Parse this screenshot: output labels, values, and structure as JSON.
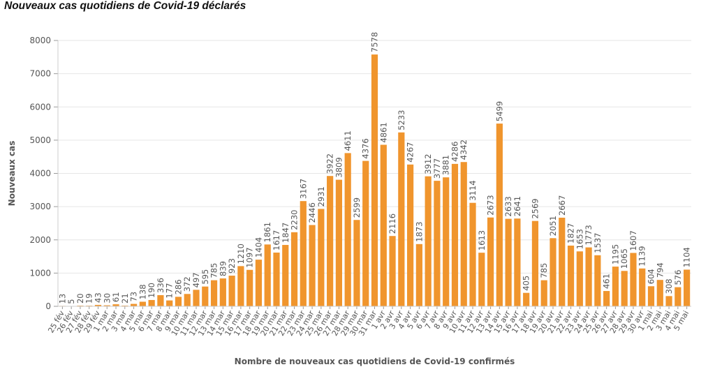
{
  "title": "Nouveaux cas quotidiens de Covid-19 déclarés",
  "chart_data": {
    "type": "bar",
    "xlabel": "Nombre de nouveaux cas quotidiens de Covid-19 confirmés",
    "ylabel": "Nouveaux cas",
    "ylim": [
      0,
      8000
    ],
    "yticks": [
      0,
      1000,
      2000,
      3000,
      4000,
      5000,
      6000,
      7000,
      8000
    ],
    "grid": true,
    "bar_color": "#f0952d",
    "categories": [
      "25 fév",
      "26 fév",
      "27 fév",
      "28 fév",
      "29 fév",
      "1 mar",
      "2 mar",
      "3 mar",
      "4 mar",
      "5 mar",
      "6 mar",
      "7 mar",
      "8 mar",
      "9 mar",
      "10 mar",
      "11 mar",
      "12 mar",
      "13 mar",
      "14 mar",
      "15 mar",
      "16 mar",
      "17 mar",
      "18 mar",
      "19 mar",
      "20 mar",
      "21 mar",
      "22 mar",
      "23 mar",
      "24 mar",
      "25 mar",
      "26 mar",
      "27 mar",
      "28 mar",
      "29 mar",
      "30 mar",
      "31 mar",
      "1 avr",
      "2 avr",
      "3 avr",
      "4 avr",
      "5 avr",
      "6 avr",
      "7 avr",
      "8 avr",
      "9 avr",
      "10 avr",
      "11 avr",
      "12 avr",
      "13 avr",
      "14 avr",
      "15 avr",
      "16 avr",
      "17 avr",
      "18 avr",
      "19 avr",
      "20 avr",
      "21 avr",
      "22 avr",
      "23 avr",
      "24 avr",
      "25 avr",
      "26 avr",
      "27 avr",
      "28 avr",
      "29 avr",
      "30 avr",
      "1 mai",
      "2 mai",
      "3 mai",
      "4 mai",
      "5 mai"
    ],
    "values": [
      13,
      5,
      20,
      19,
      43,
      30,
      61,
      21,
      73,
      138,
      190,
      336,
      177,
      286,
      372,
      497,
      595,
      785,
      839,
      923,
      1210,
      1097,
      1404,
      1861,
      1617,
      1847,
      2230,
      3167,
      2446,
      2931,
      3922,
      3809,
      4611,
      2599,
      4376,
      7578,
      4861,
      2116,
      5233,
      4267,
      1873,
      3912,
      3777,
      3881,
      4286,
      4342,
      3114,
      1613,
      2673,
      5499,
      2633,
      2641,
      405,
      2569,
      785,
      2051,
      2667,
      1827,
      1653,
      1773,
      1537,
      461,
      1195,
      1065,
      1607,
      1139,
      604,
      794,
      308,
      576,
      1104
    ]
  }
}
